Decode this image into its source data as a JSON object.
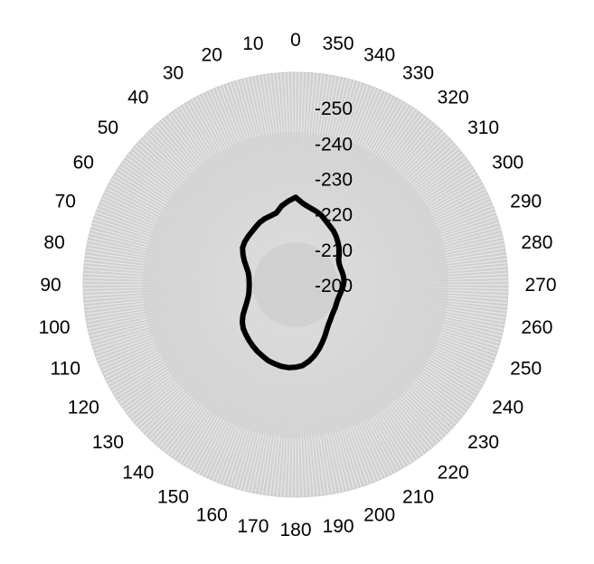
{
  "chart_data": {
    "type": "polar-line",
    "title": "",
    "angle_unit": "degrees",
    "angle_direction": "counterclockwise",
    "angle_zero": "top",
    "angle_ticks": [
      0,
      10,
      20,
      30,
      40,
      50,
      60,
      70,
      80,
      90,
      100,
      110,
      120,
      130,
      140,
      150,
      160,
      170,
      180,
      190,
      200,
      210,
      220,
      230,
      240,
      250,
      260,
      270,
      280,
      290,
      300,
      310,
      320,
      330,
      340,
      350
    ],
    "r_ticks": [
      -200,
      -210,
      -220,
      -230,
      -240,
      -250
    ],
    "r_range": [
      -260,
      -200
    ],
    "r_reversed": true,
    "series": [
      {
        "name": "",
        "angles": [
          0,
          5,
          10,
          15,
          20,
          25,
          30,
          35,
          40,
          45,
          50,
          55,
          60,
          65,
          70,
          75,
          80,
          85,
          90,
          95,
          100,
          105,
          110,
          115,
          120,
          125,
          130,
          135,
          140,
          145,
          150,
          155,
          160,
          165,
          170,
          175,
          180,
          185,
          190,
          195,
          200,
          205,
          210,
          215,
          220,
          225,
          230,
          235,
          240,
          245,
          250,
          255,
          260,
          265,
          270,
          275,
          280,
          285,
          290,
          295,
          300,
          305,
          310,
          315,
          320,
          325,
          330,
          335,
          340,
          345,
          350,
          355
        ],
        "values": [
          -224.7,
          -223.7,
          -222.6,
          -221.0,
          -220.7,
          -220.6,
          -220.3,
          -219.8,
          -219.4,
          -219.1,
          -218.8,
          -218.3,
          -217.2,
          -216.0,
          -214.8,
          -213.9,
          -213.4,
          -213.2,
          -213.1,
          -213.2,
          -213.4,
          -213.9,
          -214.7,
          -215.8,
          -217.2,
          -218.4,
          -219.3,
          -219.9,
          -220.5,
          -221.1,
          -221.7,
          -222.2,
          -222.8,
          -223.1,
          -223.4,
          -223.5,
          -223.3,
          -222.9,
          -221.9,
          -220.7,
          -219.3,
          -217.9,
          -216.6,
          -215.4,
          -214.5,
          -213.9,
          -213.4,
          -213.1,
          -212.9,
          -212.7,
          -212.6,
          -212.7,
          -212.9,
          -213.2,
          -213.5,
          -213.7,
          -213.7,
          -213.6,
          -213.5,
          -213.6,
          -214.0,
          -215.0,
          -216.0,
          -216.9,
          -217.8,
          -218.6,
          -219.2,
          -220.0,
          -221.0,
          -221.6,
          -222.2,
          -223.1
        ],
        "color": "#000000"
      }
    ],
    "grid": true,
    "grid_color": "#c8c8c8",
    "fill_color": "#d0d0d0"
  }
}
